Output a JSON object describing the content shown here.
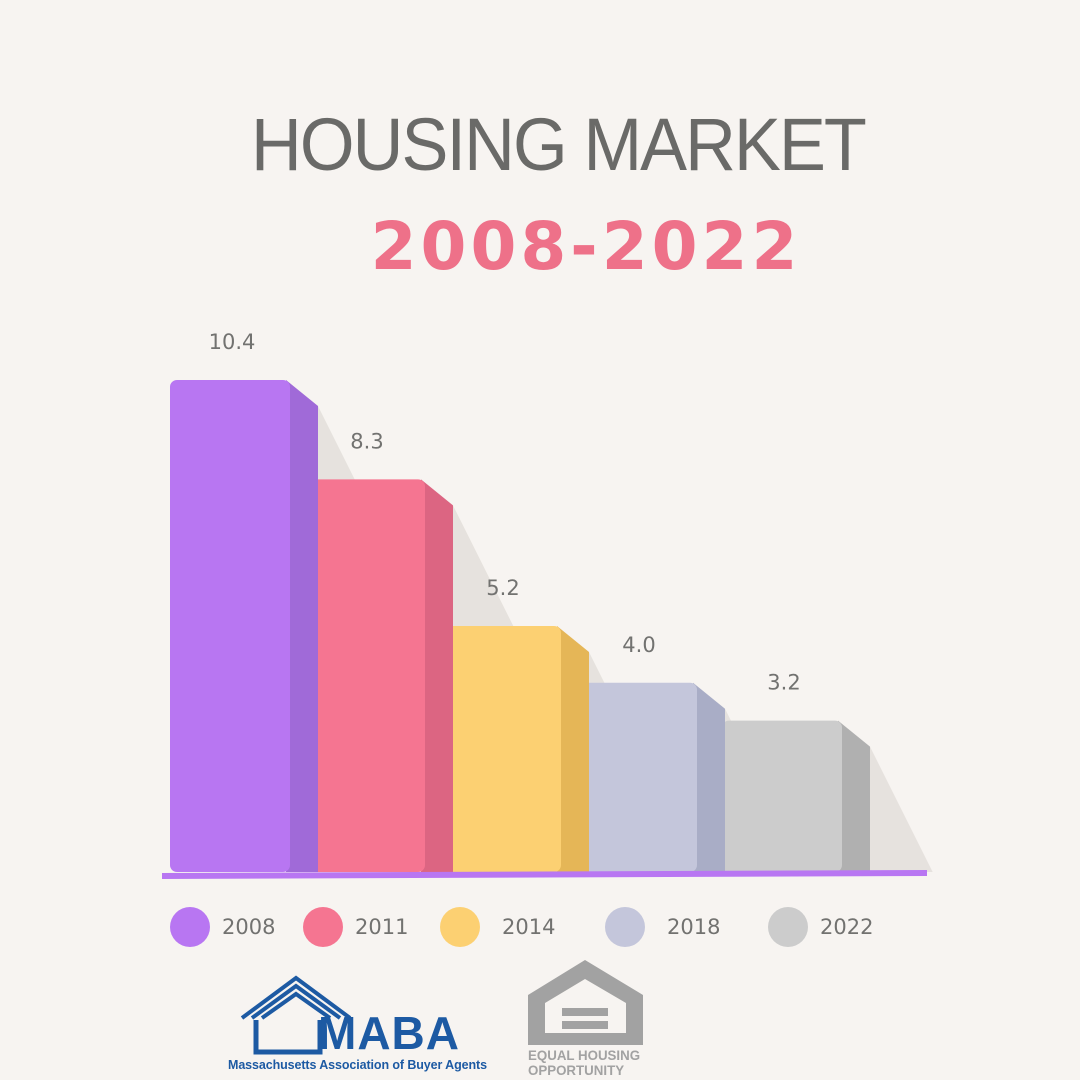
{
  "title": "HOUSING MARKET",
  "subtitle": "2008-2022",
  "chart_data": {
    "type": "bar",
    "categories": [
      "2008",
      "2011",
      "2014",
      "2018",
      "2022"
    ],
    "values": [
      10.4,
      8.3,
      5.2,
      4.0,
      3.2
    ],
    "value_labels": [
      "10.4",
      "8.3",
      "5.2",
      "4.0",
      "3.2"
    ],
    "colors": [
      "#b876f2",
      "#f57591",
      "#fcd072",
      "#c4c6db",
      "#cccccc"
    ],
    "side_colors": [
      "#a06ad8",
      "#dc6582",
      "#e5b657",
      "#a9adc6",
      "#b0b0b0"
    ],
    "legend": [
      "2008",
      "2011",
      "2014",
      "2018",
      "2022"
    ],
    "legend_placement": "bottom",
    "baseline_color": "#b876f2",
    "grid": false
  },
  "logos": {
    "maba_word": "MABA",
    "maba_caption": "Massachusetts Association of Buyer Agents",
    "maba_color": "#1d5aa3",
    "eho_line1": "EQUAL HOUSING",
    "eho_line2": "OPPORTUNITY",
    "eho_color": "#a2a2a2"
  }
}
